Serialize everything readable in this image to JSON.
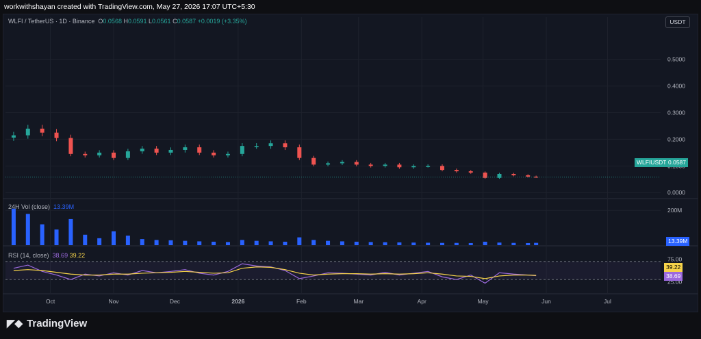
{
  "header": {
    "credit": "workwithshayan created with TradingView.com, May 27, 2026 17:07 UTC+5:30"
  },
  "legend": {
    "symbol": "WLFI / TetherUS · 1D · Binance",
    "o_label": "O",
    "o": "0.0568",
    "h_label": "H",
    "h": "0.0591",
    "l_label": "L",
    "l": "0.0561",
    "c_label": "C",
    "c": "0.0587",
    "change": "+0.0019 (+3.35%)"
  },
  "currency_button": "USDT",
  "price_axis": [
    "0.5000",
    "0.4000",
    "0.3000",
    "0.2000",
    "0.1000",
    "0.0000"
  ],
  "last_price_tag": {
    "symbol": "WLFIUSDT",
    "value": "0.0587"
  },
  "volume_pane": {
    "label": "24H Vol (close)",
    "value": "13.39M",
    "axis_label": "200M",
    "tag": "13.39M"
  },
  "rsi_pane": {
    "label": "RSI (14, close)",
    "rsi": "38.69",
    "ma": "39.22",
    "axis_top": "75.00",
    "axis_bottom": "25.00",
    "tag_ma": "39.22",
    "tag_rsi": "38.69"
  },
  "time_axis": [
    "Oct",
    "Nov",
    "Dec",
    "2026",
    "Feb",
    "Mar",
    "Apr",
    "May",
    "Jun",
    "Jul"
  ],
  "footer": {
    "brand": "TradingView"
  },
  "colors": {
    "up": "#26a69a",
    "down": "#ef5350",
    "volume": "#2962ff",
    "rsi": "#9c6ade",
    "rsi_ma": "#f6d34a",
    "background": "#131722"
  },
  "chart_data": [
    {
      "type": "candlestick",
      "title": "WLFI / TetherUS · 1D · Binance",
      "x": [
        "2025-09-13",
        "2025-09-20",
        "2025-09-27",
        "2025-10-04",
        "2025-10-11",
        "2025-10-18",
        "2025-10-25",
        "2025-11-01",
        "2025-11-08",
        "2025-11-15",
        "2025-11-22",
        "2025-11-29",
        "2025-12-06",
        "2025-12-13",
        "2025-12-20",
        "2025-12-27",
        "2026-01-03",
        "2026-01-10",
        "2026-01-17",
        "2026-01-24",
        "2026-01-31",
        "2026-02-07",
        "2026-02-14",
        "2026-02-21",
        "2026-02-28",
        "2026-03-07",
        "2026-03-14",
        "2026-03-21",
        "2026-03-28",
        "2026-04-04",
        "2026-04-11",
        "2026-04-18",
        "2026-04-25",
        "2026-05-02",
        "2026-05-09",
        "2026-05-16",
        "2026-05-23",
        "2026-05-27"
      ],
      "close": [
        0.215,
        0.24,
        0.225,
        0.205,
        0.145,
        0.14,
        0.15,
        0.13,
        0.155,
        0.165,
        0.15,
        0.16,
        0.17,
        0.15,
        0.14,
        0.145,
        0.175,
        0.175,
        0.185,
        0.17,
        0.13,
        0.105,
        0.11,
        0.115,
        0.105,
        0.1,
        0.105,
        0.095,
        0.1,
        0.1,
        0.085,
        0.08,
        0.075,
        0.055,
        0.07,
        0.065,
        0.06,
        0.0587
      ],
      "xlabel": "",
      "ylabel": "",
      "ylim": [
        -0.02,
        0.62
      ],
      "grid": true
    },
    {
      "type": "bar",
      "title": "24H Vol (close)",
      "x": [
        "2025-09-13",
        "2025-09-20",
        "2025-09-27",
        "2025-10-04",
        "2025-10-11",
        "2025-10-18",
        "2025-10-25",
        "2025-11-01",
        "2025-11-08",
        "2025-11-15",
        "2025-11-22",
        "2025-11-29",
        "2025-12-06",
        "2025-12-13",
        "2025-12-20",
        "2025-12-27",
        "2026-01-03",
        "2026-01-10",
        "2026-01-17",
        "2026-01-24",
        "2026-01-31",
        "2026-02-07",
        "2026-02-14",
        "2026-02-21",
        "2026-02-28",
        "2026-03-07",
        "2026-03-14",
        "2026-03-21",
        "2026-03-28",
        "2026-04-04",
        "2026-04-11",
        "2026-04-18",
        "2026-04-25",
        "2026-05-02",
        "2026-05-09",
        "2026-05-16",
        "2026-05-23",
        "2026-05-27"
      ],
      "values": [
        210,
        180,
        120,
        90,
        150,
        60,
        40,
        80,
        55,
        35,
        30,
        28,
        25,
        22,
        20,
        18,
        30,
        25,
        22,
        20,
        45,
        30,
        25,
        22,
        20,
        18,
        17,
        16,
        15,
        14,
        13,
        13,
        12,
        20,
        15,
        13,
        12,
        13.39
      ],
      "unit": "M"
    },
    {
      "type": "line",
      "title": "RSI (14, close)",
      "series": [
        {
          "name": "RSI",
          "values": [
            55,
            62,
            48,
            40,
            30,
            42,
            38,
            45,
            40,
            50,
            45,
            48,
            52,
            44,
            40,
            48,
            65,
            60,
            58,
            50,
            32,
            38,
            45,
            44,
            42,
            40,
            46,
            40,
            44,
            48,
            36,
            30,
            40,
            22,
            45,
            42,
            40,
            38.69
          ]
        },
        {
          "name": "RSI MA",
          "values": [
            50,
            52,
            50,
            46,
            42,
            40,
            40,
            42,
            42,
            44,
            45,
            46,
            48,
            46,
            44,
            45,
            55,
            58,
            57,
            52,
            44,
            40,
            42,
            43,
            43,
            42,
            43,
            42,
            43,
            45,
            42,
            38,
            37,
            32,
            38,
            40,
            40,
            39.22
          ]
        }
      ],
      "ylim": [
        0,
        100
      ],
      "bands": [
        30,
        70
      ]
    }
  ]
}
